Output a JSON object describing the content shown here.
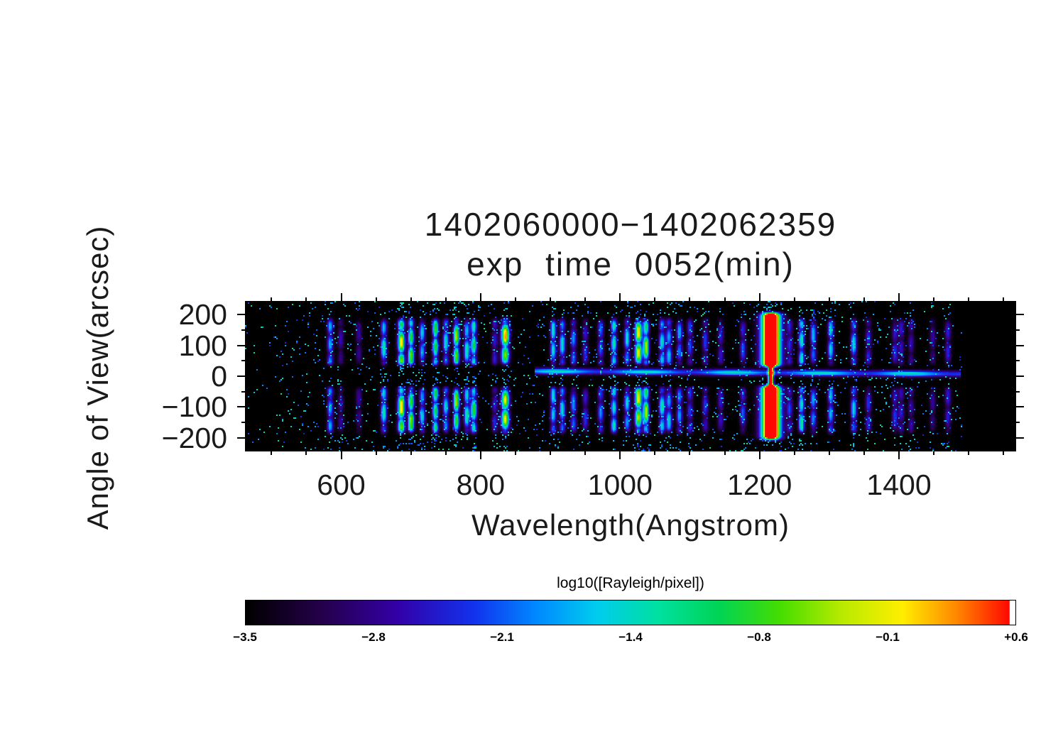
{
  "chart_data": {
    "type": "heatmap",
    "title": "1402060000−1402062359",
    "subtitle": "exp time 0052(min)",
    "xlabel": "Wavelength(Angstrom)",
    "ylabel": "Angle of View(arcsec)",
    "x_range": [
      462,
      1568
    ],
    "y_range": [
      -245,
      245
    ],
    "x_ticks": [
      600,
      800,
      1000,
      1200,
      1400
    ],
    "x_minor_step": 50,
    "y_ticks": [
      200,
      100,
      0,
      -100,
      -200
    ],
    "y_minor_step": 50,
    "data_limits": [
      505,
      1490
    ],
    "emission_lines": [
      [
        584,
        0.5,
        3
      ],
      [
        599,
        0.22,
        3
      ],
      [
        625,
        0.2,
        3
      ],
      [
        661,
        0.55,
        3
      ],
      [
        686,
        0.9,
        3.5
      ],
      [
        700,
        0.8,
        3
      ],
      [
        716,
        0.5,
        3
      ],
      [
        735,
        0.75,
        3
      ],
      [
        750,
        0.5,
        3
      ],
      [
        765,
        0.8,
        3
      ],
      [
        780,
        0.55,
        3
      ],
      [
        790,
        0.68,
        3
      ],
      [
        820,
        0.3,
        3
      ],
      [
        835,
        0.95,
        4
      ],
      [
        904,
        0.55,
        3
      ],
      [
        917,
        0.5,
        3
      ],
      [
        933,
        0.4,
        3
      ],
      [
        950,
        0.3,
        3
      ],
      [
        972,
        0.4,
        3
      ],
      [
        991,
        0.62,
        3
      ],
      [
        1010,
        0.5,
        3
      ],
      [
        1026,
        0.9,
        3.5
      ],
      [
        1037,
        0.78,
        3
      ],
      [
        1060,
        0.55,
        3
      ],
      [
        1070,
        0.5,
        3
      ],
      [
        1085,
        0.45,
        3
      ],
      [
        1100,
        0.35,
        3
      ],
      [
        1122,
        0.3,
        3
      ],
      [
        1144,
        0.26,
        3
      ],
      [
        1176,
        0.34,
        3
      ],
      [
        1243,
        0.3,
        3
      ],
      [
        1260,
        0.62,
        3
      ],
      [
        1277,
        0.45,
        3
      ],
      [
        1302,
        0.5,
        3
      ],
      [
        1335,
        0.48,
        3
      ],
      [
        1356,
        0.3,
        3
      ],
      [
        1394,
        0.3,
        3
      ],
      [
        1403,
        0.27,
        3
      ],
      [
        1417,
        0.24,
        3
      ],
      [
        1448,
        0.2,
        3
      ],
      [
        1470,
        0.28,
        3
      ]
    ],
    "lyman_alpha": {
      "wavelength": 1216,
      "amplitude": 1.5,
      "sigma": 9,
      "core_sigma": 2.5,
      "band": [
        26,
        208
      ]
    },
    "horizontal_streak": {
      "x_from": 878,
      "x_to": 1488,
      "y_center": 16,
      "slope": -0.015,
      "sigma": 7,
      "amplitude": 0.52
    },
    "noise": {
      "base_density": 0.03,
      "line_boost": 0.18,
      "value_min": 0.26,
      "value_spread": 0.3,
      "edge_density": 0.012
    },
    "colormap": {
      "label": "log10([Rayleigh/pixel])",
      "tick_labels": [
        "−3.5",
        "−2.8",
        "−2.1",
        "−1.4",
        "−0.8",
        "−0.1",
        "+0.6"
      ],
      "over_color": "#ffffff",
      "stops": [
        {
          "pos": 0.0,
          "color": "#000000"
        },
        {
          "pos": 0.1,
          "color": "#24004a"
        },
        {
          "pos": 0.2,
          "color": "#3300a8"
        },
        {
          "pos": 0.3,
          "color": "#1133ee"
        },
        {
          "pos": 0.38,
          "color": "#0088ff"
        },
        {
          "pos": 0.46,
          "color": "#00ccee"
        },
        {
          "pos": 0.54,
          "color": "#00e0a0"
        },
        {
          "pos": 0.62,
          "color": "#00d455"
        },
        {
          "pos": 0.7,
          "color": "#44dd00"
        },
        {
          "pos": 0.78,
          "color": "#b8ea00"
        },
        {
          "pos": 0.86,
          "color": "#ffee00"
        },
        {
          "pos": 0.93,
          "color": "#ff8800"
        },
        {
          "pos": 1.0,
          "color": "#ff0800"
        }
      ]
    }
  }
}
